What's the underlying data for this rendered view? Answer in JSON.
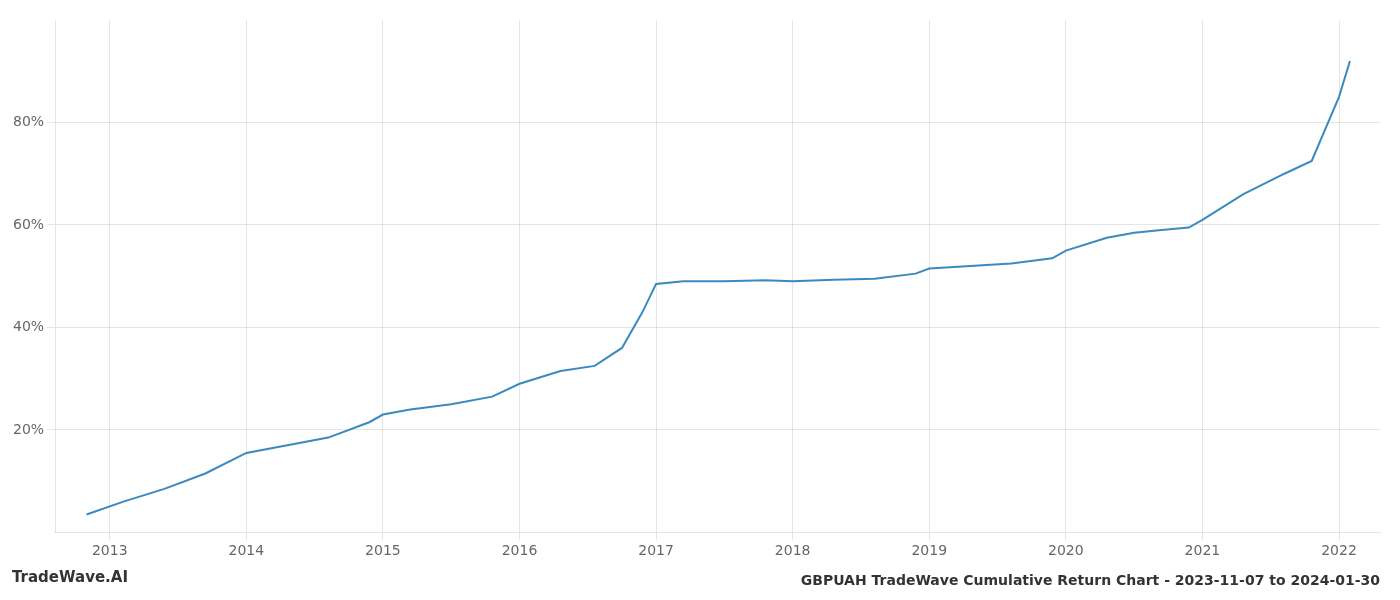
{
  "chart_data": {
    "type": "line",
    "title": "GBPUAH TradeWave Cumulative Return Chart - 2023-11-07 to 2024-01-30",
    "annotations": [
      "TradeWave.AI"
    ],
    "x": [
      2012.83,
      2013.1,
      2013.4,
      2013.7,
      2014.0,
      2014.3,
      2014.6,
      2014.9,
      2015.0,
      2015.2,
      2015.5,
      2015.8,
      2016.0,
      2016.3,
      2016.55,
      2016.75,
      2016.9,
      2017.0,
      2017.2,
      2017.5,
      2017.8,
      2018.0,
      2018.3,
      2018.6,
      2018.9,
      2019.0,
      2019.3,
      2019.6,
      2019.9,
      2020.0,
      2020.3,
      2020.5,
      2020.7,
      2020.9,
      2021.0,
      2021.3,
      2021.6,
      2021.8,
      2022.0,
      2022.08
    ],
    "values": [
      3.5,
      6.0,
      8.5,
      11.5,
      15.5,
      17.0,
      18.5,
      21.5,
      23.0,
      24.0,
      25.0,
      26.5,
      29.0,
      31.5,
      32.5,
      36.0,
      43.0,
      48.5,
      49.0,
      49.0,
      49.2,
      49.0,
      49.3,
      49.5,
      50.5,
      51.5,
      52.0,
      52.5,
      53.5,
      55.0,
      57.5,
      58.5,
      59.0,
      59.5,
      61.0,
      66.0,
      70.0,
      72.5,
      85.0,
      92.0
    ],
    "color": "#3a8abf",
    "xlim": [
      2012.6,
      2022.3
    ],
    "xticks": [
      2013,
      2014,
      2015,
      2016,
      2017,
      2018,
      2019,
      2020,
      2021,
      2022
    ],
    "ylim": [
      0,
      100
    ],
    "yticks": [
      {
        "value": 20,
        "label": "20%"
      },
      {
        "value": 40,
        "label": "40%"
      },
      {
        "value": 60,
        "label": "60%"
      },
      {
        "value": 80,
        "label": "80%"
      }
    ],
    "grid": true
  }
}
